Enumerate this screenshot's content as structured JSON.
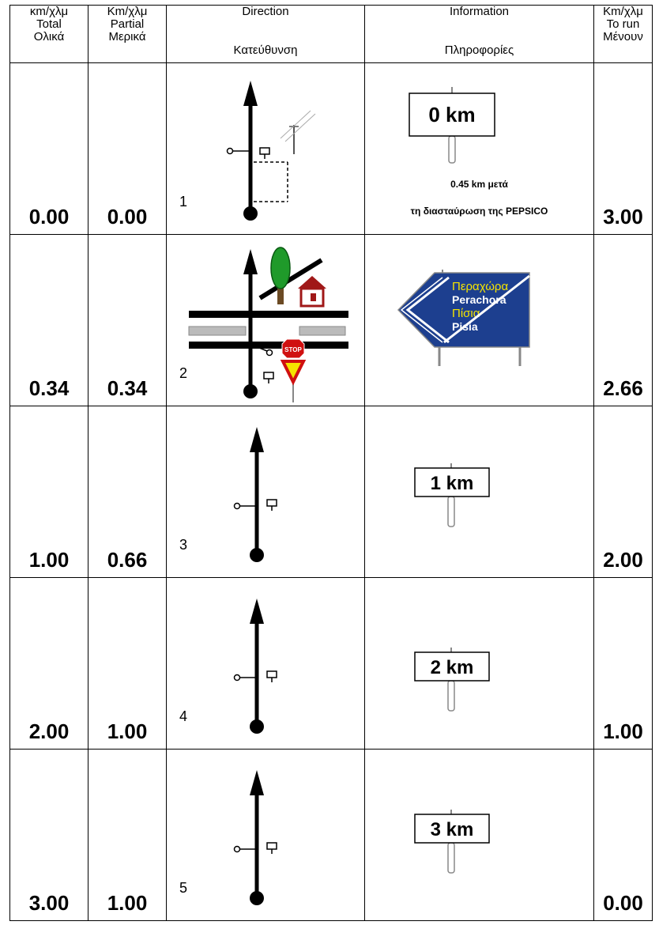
{
  "header": {
    "total": {
      "l1": "κm/χλμ",
      "l2": "Total",
      "l3": "Ολικά"
    },
    "partial": {
      "l1": "Km/χλμ",
      "l2": "Partial",
      "l3": "Μερικά"
    },
    "direction": {
      "l1": "Direction",
      "l2": "Κατεύθυνση"
    },
    "information": {
      "l1": "Information",
      "l2": "Πληροφορίες"
    },
    "to_run": {
      "l1": "Km/χλμ",
      "l2": "To run",
      "l3": "Μένουν"
    }
  },
  "rows": [
    {
      "total": "0.00",
      "partial": "0.00",
      "step": "1",
      "to_run": "3.00",
      "sign_km": "0 km",
      "caption1": "0.45 km μετά",
      "caption2": "τη διασταύρωση της PEPSICO"
    },
    {
      "total": "0.34",
      "partial": "0.34",
      "step": "2",
      "to_run": "2.66",
      "sign": {
        "line1": "Περαχώρα",
        "line2": "Perachora",
        "line3": "Πίσια",
        "line4": "Pisia"
      },
      "stop_text": "STOP"
    },
    {
      "total": "1.00",
      "partial": "0.66",
      "step": "3",
      "to_run": "2.00",
      "sign_km": "1 km"
    },
    {
      "total": "2.00",
      "partial": "1.00",
      "step": "4",
      "to_run": "1.00",
      "sign_km": "2 km"
    },
    {
      "total": "3.00",
      "partial": "1.00",
      "step": "5",
      "to_run": "0.00",
      "sign_km": "3 km"
    }
  ],
  "colors": {
    "sign_blue": "#1d3f8f",
    "sign_yellow": "#f5e400",
    "stop_red": "#d01010",
    "house_red": "#a01818",
    "tree_green": "#1f9a2a"
  }
}
